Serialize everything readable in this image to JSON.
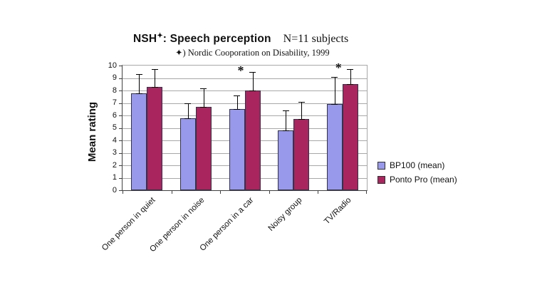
{
  "title": {
    "prefix": "NSH",
    "star": "✦",
    "suffix": ": Speech perception",
    "note": "N=11 subjects"
  },
  "subtitle": "✦) Nordic Cooporation on Disability, 1999",
  "chart_data": {
    "type": "bar",
    "title": "NSH✦: Speech perception — N=11 subjects",
    "subtitle": "✦) Nordic Cooporation on Disability, 1999",
    "categories": [
      "One person in quiet",
      "One person in noise",
      "One person in a car",
      "Noisy group",
      "TV/Radio"
    ],
    "series": [
      {
        "name": "BP100 (mean)",
        "color": "#9999EC",
        "values": [
          7.8,
          5.8,
          6.5,
          4.8,
          6.9
        ],
        "error_top": [
          9.3,
          7.0,
          7.6,
          6.4,
          9.1
        ]
      },
      {
        "name": "Ponto Pro (mean)",
        "color": "#A9255E",
        "values": [
          8.3,
          6.7,
          8.0,
          5.7,
          8.5
        ],
        "error_top": [
          9.7,
          8.2,
          9.5,
          7.1,
          9.7
        ]
      }
    ],
    "significance_marker": "*",
    "significant": [
      false,
      false,
      true,
      false,
      true
    ],
    "annotations": [
      {
        "text": "*",
        "category": "One person in a car"
      },
      {
        "text": "*",
        "category": "TV/Radio"
      }
    ],
    "xlabel": "",
    "ylabel": "Mean rating",
    "ylim": [
      0,
      10
    ],
    "ytick_step": 1,
    "grid": true,
    "legend_position": "right"
  }
}
